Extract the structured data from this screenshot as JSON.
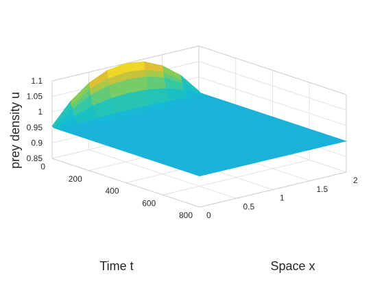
{
  "chart_data": {
    "type": "surface",
    "zlabel": "prey density u",
    "xlabel": "Space x",
    "ylabel": "Time t",
    "xlim": [
      0,
      2
    ],
    "ylim": [
      0,
      800
    ],
    "zlim": [
      0.85,
      1.1
    ],
    "xticks": [
      "0",
      "0.5",
      "1",
      "1.5",
      "2"
    ],
    "yticks": [
      "0",
      "200",
      "400",
      "600",
      "800"
    ],
    "zticks": [
      "0.85",
      "0.9",
      "0.95",
      "1",
      "1.05",
      "1.1"
    ],
    "grid": true,
    "colormap": "parula",
    "colors": {
      "low": "#3e26a8",
      "mid": "#13bed0",
      "high": "#f9fb15"
    },
    "surface": {
      "x": [
        0,
        0.25,
        0.5,
        0.75,
        1,
        1.25,
        1.5,
        1.75,
        2
      ],
      "t": [
        0,
        5,
        10,
        20,
        40,
        80,
        160,
        320,
        800
      ],
      "u": [
        [
          0.955,
          1.02,
          1.065,
          1.092,
          1.1,
          1.092,
          1.065,
          1.02,
          0.955
        ],
        [
          0.952,
          1.005,
          1.045,
          1.066,
          1.072,
          1.066,
          1.045,
          1.005,
          0.952
        ],
        [
          0.95,
          0.995,
          1.028,
          1.045,
          1.05,
          1.045,
          1.028,
          0.995,
          0.95
        ],
        [
          0.95,
          0.975,
          0.995,
          1.005,
          1.008,
          1.005,
          0.995,
          0.975,
          0.95
        ],
        [
          0.95,
          0.955,
          0.958,
          0.96,
          0.96,
          0.96,
          0.958,
          0.955,
          0.95
        ],
        [
          0.95,
          0.95,
          0.95,
          0.95,
          0.95,
          0.95,
          0.95,
          0.95,
          0.95
        ],
        [
          0.95,
          0.95,
          0.95,
          0.95,
          0.95,
          0.95,
          0.95,
          0.95,
          0.95
        ],
        [
          0.95,
          0.95,
          0.95,
          0.95,
          0.95,
          0.95,
          0.95,
          0.95,
          0.95
        ],
        [
          0.95,
          0.95,
          0.95,
          0.95,
          0.95,
          0.95,
          0.95,
          0.95,
          0.95
        ]
      ]
    }
  }
}
